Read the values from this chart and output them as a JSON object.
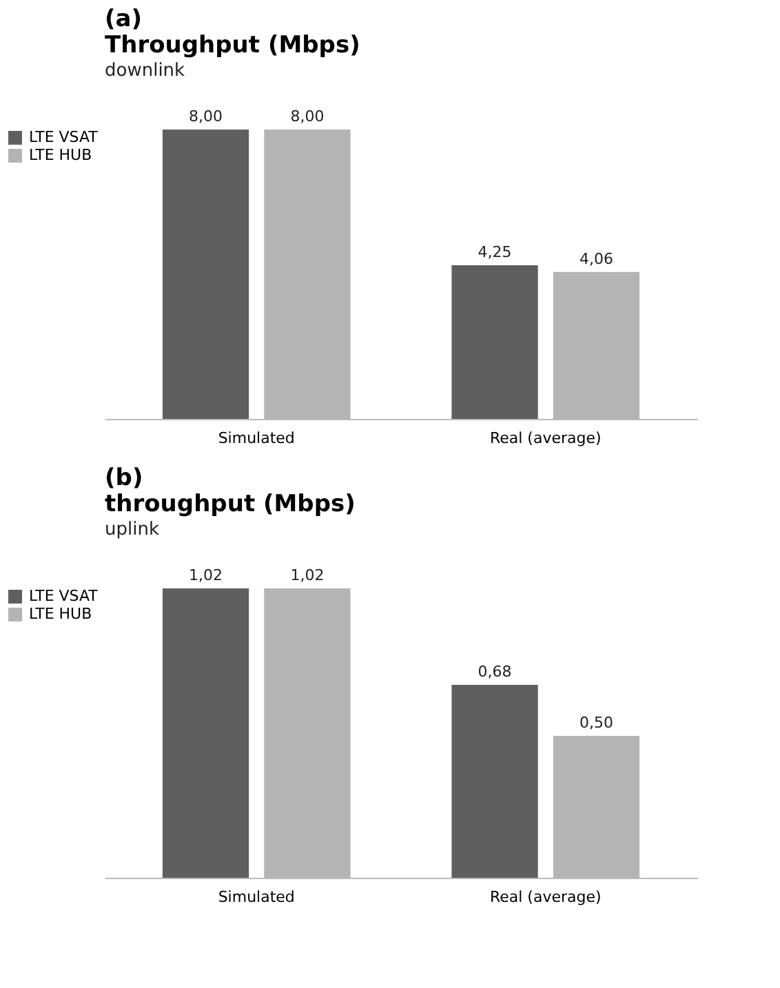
{
  "chart_data": [
    {
      "type": "bar",
      "title": "Throughput (Mbps)",
      "subtitle": "downlink",
      "annotations": [
        "(a)"
      ],
      "categories": [
        "Simulated",
        "Real (average)"
      ],
      "legend": "left",
      "series": [
        {
          "name": "LTE VSAT",
          "color": "#5f5f5f",
          "values": [
            8.0,
            4.25
          ],
          "value_labels": [
            "8,00",
            "4,25"
          ]
        },
        {
          "name": "LTE HUB",
          "color": "#b4b4b4",
          "values": [
            8.0,
            4.06
          ],
          "value_labels": [
            "8,00",
            "4,06"
          ]
        }
      ]
    },
    {
      "type": "bar",
      "title": "throughput (Mbps)",
      "subtitle": "uplink",
      "annotations": [
        "(b)"
      ],
      "categories": [
        "Simulated",
        "Real (average)"
      ],
      "legend": "left",
      "series": [
        {
          "name": "LTE VSAT",
          "color": "#5f5f5f",
          "values": [
            1.02,
            0.68
          ],
          "value_labels": [
            "1,02",
            "0,68"
          ]
        },
        {
          "name": "LTE HUB",
          "color": "#b4b4b4",
          "values": [
            1.02,
            0.5
          ],
          "value_labels": [
            "1,02",
            "0,50"
          ]
        }
      ]
    }
  ]
}
